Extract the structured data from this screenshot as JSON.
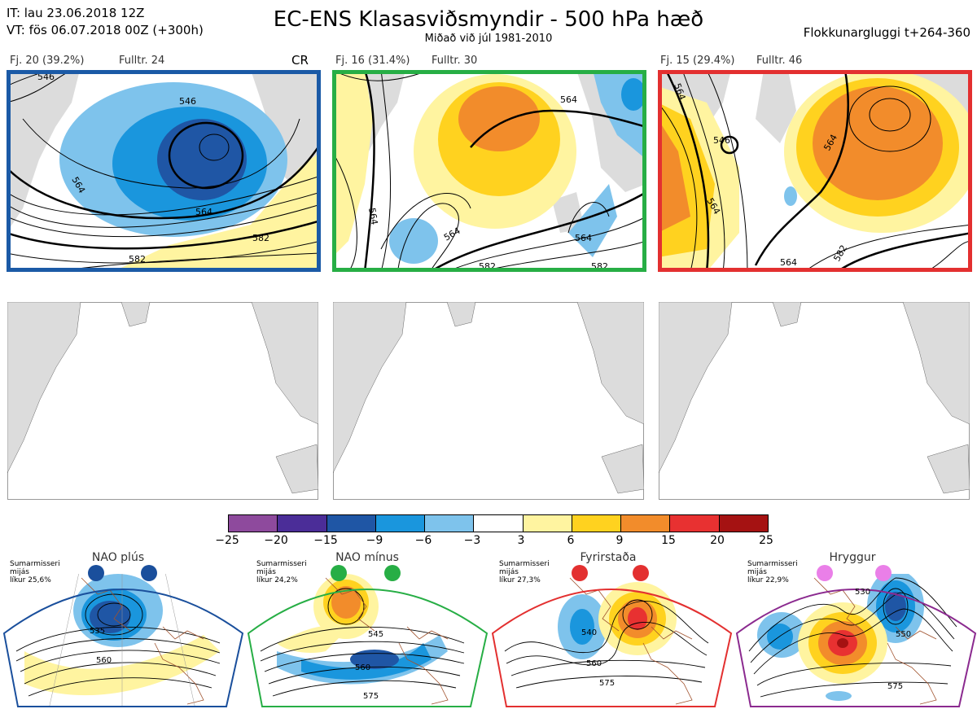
{
  "header": {
    "it": "IT: lau 23.06.2018 12Z",
    "vt": "VT: fös 06.07.2018 00Z  (+300h)",
    "title": "EC-ENS Klasasviðsmyndir - 500 hPa hæð",
    "subtitle": "Miðað við júl 1981-2010",
    "window": "Flokkunargluggi t+264-360"
  },
  "clusters": [
    {
      "fj": "Fj. 20 (39.2%)",
      "fulltr": "Fulltr. 24",
      "tag": "CR",
      "frame_color": "#1b5aa6",
      "contour_labels": [
        "546",
        "546",
        "564",
        "564",
        "582",
        "582"
      ]
    },
    {
      "fj": "Fj. 16 (31.4%)",
      "fulltr": "Fulltr. 30",
      "tag": "",
      "frame_color": "#27ae45",
      "contour_labels": [
        "564",
        "564",
        "564",
        "564",
        "582",
        "582"
      ]
    },
    {
      "fj": "Fj. 15 (29.4%)",
      "fulltr": "Fulltr. 46",
      "tag": "",
      "frame_color": "#e33030",
      "contour_labels": [
        "564",
        "546",
        "564",
        "564",
        "564",
        "582"
      ]
    }
  ],
  "colorbar": {
    "colors": [
      "#8e4a9d",
      "#4b2d98",
      "#1f56a5",
      "#1a96dd",
      "#7ec3ec",
      "#ffffff",
      "#fff4a0",
      "#ffd21f",
      "#f28c2b",
      "#e83131",
      "#a51212"
    ],
    "ticks": [
      "−25",
      "−20",
      "−15",
      "−9",
      "−6",
      "−3",
      "3",
      "6",
      "9",
      "15",
      "20",
      "25"
    ]
  },
  "regimes": [
    {
      "name": "NAO plús",
      "info": [
        "Sumarmisseri",
        "mijás",
        "líkur 25,6%"
      ],
      "color": "#1a4f9c",
      "dot": "#1a4f9c",
      "labels": [
        "535",
        "560"
      ]
    },
    {
      "name": "NAO mínus",
      "info": [
        "Sumarmisseri",
        "mijás",
        "líkur 24,2%"
      ],
      "color": "#27ae45",
      "dot": "#27ae45",
      "labels": [
        "545",
        "560",
        "575"
      ]
    },
    {
      "name": "Fyrirstaða",
      "info": [
        "Sumarmisseri",
        "mijás",
        "líkur 27,3%"
      ],
      "color": "#e33030",
      "dot": "#e33030",
      "labels": [
        "540",
        "560",
        "575"
      ]
    },
    {
      "name": "Hryggur",
      "info": [
        "Sumarmisseri",
        "mijás",
        "líkur 22,9%"
      ],
      "color": "#8b2a8f",
      "dot": "#ea7fe8",
      "labels": [
        "530",
        "550",
        "575"
      ]
    }
  ]
}
